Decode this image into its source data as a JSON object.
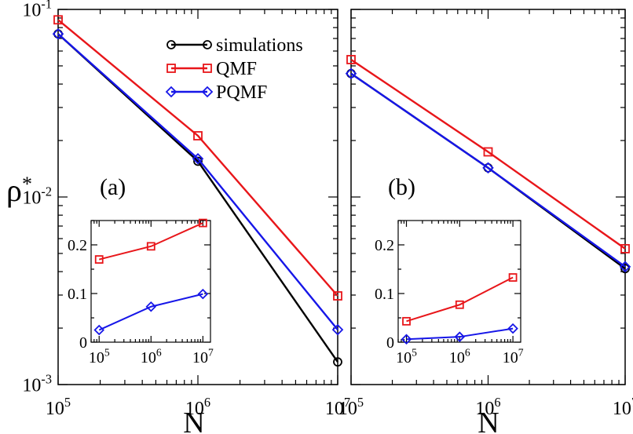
{
  "figure": {
    "ylabel_base": "ρ",
    "ylabel_sup": "*",
    "xlabel": "N"
  },
  "colors": {
    "simulations": "#000000",
    "QMF": "#e8161a",
    "PQMF": "#1616e8"
  },
  "legend": {
    "entries": [
      {
        "label": "simulations",
        "series": "simulations",
        "marker": "circle"
      },
      {
        "label": "QMF",
        "series": "QMF",
        "marker": "square"
      },
      {
        "label": "PQMF",
        "series": "PQMF",
        "marker": "diamond"
      }
    ]
  },
  "chart_data": [
    {
      "id": "a",
      "panel_label": "(a)",
      "type": "line",
      "xscale": "log",
      "yscale": "log",
      "xlim": [
        100000,
        10000000
      ],
      "ylim": [
        0.001,
        0.1
      ],
      "xticks": [
        {
          "base": "10",
          "exp": "5",
          "v": 100000
        },
        {
          "base": "10",
          "exp": "6",
          "v": 1000000
        },
        {
          "base": "10",
          "exp": "7",
          "v": 10000000
        }
      ],
      "yticks": [
        {
          "base": "10",
          "exp": "-3",
          "v": 0.001
        },
        {
          "base": "10",
          "exp": "-2",
          "v": 0.01
        },
        {
          "base": "10",
          "exp": "-1",
          "v": 0.1
        }
      ],
      "xlabel": "N",
      "ylabel": "ρ*",
      "legend_position": "top-right",
      "x": [
        100000,
        1000000,
        10000000
      ],
      "series": [
        {
          "name": "simulations",
          "marker": "circle",
          "values": [
            0.074,
            0.0155,
            0.00132
          ]
        },
        {
          "name": "QMF",
          "marker": "square",
          "values": [
            0.088,
            0.0212,
            0.00297
          ]
        },
        {
          "name": "PQMF",
          "marker": "diamond",
          "values": [
            0.074,
            0.016,
            0.00196
          ]
        }
      ]
    },
    {
      "id": "b",
      "panel_label": "(b)",
      "type": "line",
      "xscale": "log",
      "yscale": "log",
      "xlim": [
        100000,
        10000000
      ],
      "ylim": [
        0.001,
        0.1
      ],
      "xticks": [
        {
          "base": "10",
          "exp": "5",
          "v": 100000
        },
        {
          "base": "10",
          "exp": "6",
          "v": 1000000
        },
        {
          "base": "10",
          "exp": "7",
          "v": 10000000
        }
      ],
      "xlabel": "N",
      "x": [
        100000,
        1000000,
        10000000
      ],
      "series": [
        {
          "name": "simulations",
          "marker": "circle",
          "values": [
            0.0455,
            0.0143,
            0.00415
          ]
        },
        {
          "name": "QMF",
          "marker": "square",
          "values": [
            0.054,
            0.0174,
            0.0053
          ]
        },
        {
          "name": "PQMF",
          "marker": "diamond",
          "values": [
            0.0455,
            0.0143,
            0.00425
          ]
        }
      ]
    },
    {
      "id": "a-inset",
      "type": "line",
      "xscale": "log",
      "yscale": "linear",
      "xlim": [
        70000,
        14000000
      ],
      "ylim": [
        0,
        0.25
      ],
      "xticks": [
        {
          "base": "10",
          "exp": "5",
          "v": 100000
        },
        {
          "base": "10",
          "exp": "6",
          "v": 1000000
        },
        {
          "base": "10",
          "exp": "7",
          "v": 10000000
        }
      ],
      "yticks": [
        {
          "label": "0",
          "v": 0
        },
        {
          "label": "0.1",
          "v": 0.1
        },
        {
          "label": "0.2",
          "v": 0.2
        }
      ],
      "x": [
        100000,
        1000000,
        10000000
      ],
      "series": [
        {
          "name": "QMF",
          "marker": "square",
          "values": [
            0.17,
            0.197,
            0.245
          ]
        },
        {
          "name": "PQMF",
          "marker": "diamond",
          "values": [
            0.025,
            0.073,
            0.099
          ]
        }
      ]
    },
    {
      "id": "b-inset",
      "type": "line",
      "xscale": "log",
      "yscale": "linear",
      "xlim": [
        70000,
        14000000
      ],
      "ylim": [
        0,
        0.25
      ],
      "xticks": [
        {
          "base": "10",
          "exp": "5",
          "v": 100000
        },
        {
          "base": "10",
          "exp": "6",
          "v": 1000000
        },
        {
          "base": "10",
          "exp": "7",
          "v": 10000000
        }
      ],
      "yticks": [
        {
          "label": "0",
          "v": 0
        },
        {
          "label": "0.1",
          "v": 0.1
        },
        {
          "label": "0.2",
          "v": 0.2
        }
      ],
      "x": [
        100000,
        1000000,
        10000000
      ],
      "series": [
        {
          "name": "QMF",
          "marker": "square",
          "values": [
            0.043,
            0.077,
            0.133
          ]
        },
        {
          "name": "PQMF",
          "marker": "diamond",
          "values": [
            0.006,
            0.011,
            0.028
          ]
        }
      ]
    }
  ]
}
